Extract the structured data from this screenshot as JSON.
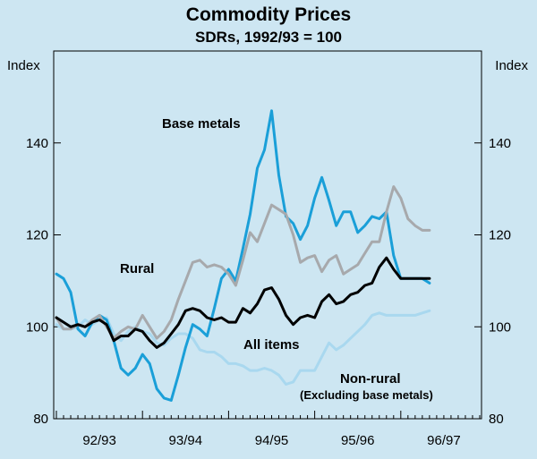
{
  "chart_data": {
    "type": "line",
    "title": "Commodity Prices",
    "subtitle": "SDRs, 1992/93 = 100",
    "ylabel_left": "Index",
    "ylabel_right": "Index",
    "ylim": [
      80,
      160
    ],
    "yticks": [
      80,
      100,
      120,
      140
    ],
    "x_unit": "months from July 1992",
    "xlim": [
      0,
      59
    ],
    "x_categories": [
      "92/93",
      "93/94",
      "94/95",
      "95/96",
      "96/97"
    ],
    "grid": false,
    "series": [
      {
        "name": "Base metals",
        "label": "Base metals",
        "color": "#1a9fd8",
        "width": 3,
        "x": [
          0,
          1,
          2,
          3,
          4,
          5,
          6,
          7,
          8,
          9,
          10,
          11,
          12,
          13,
          14,
          15,
          16,
          17,
          18,
          19,
          20,
          21,
          22,
          23,
          24,
          25,
          26,
          27,
          28,
          29,
          30,
          31,
          32,
          33,
          34,
          35,
          36,
          37,
          38,
          39,
          40,
          41,
          42,
          43,
          44,
          45,
          46,
          47,
          48,
          49,
          50,
          51,
          52
        ],
        "values": [
          111.5,
          110.5,
          107.5,
          99.5,
          98.0,
          101.0,
          102.5,
          101.5,
          97.0,
          91.0,
          89.5,
          91.0,
          94.0,
          92.0,
          86.5,
          84.5,
          84.0,
          89.5,
          95.5,
          100.5,
          99.5,
          98.0,
          104.0,
          110.5,
          112.5,
          110.0,
          117.0,
          124.5,
          134.5,
          138.5,
          147.0,
          133.0,
          124.0,
          122.5,
          119.0,
          122.0,
          128.0,
          132.5,
          127.5,
          122.0,
          125.0,
          125.0,
          120.5,
          122.0,
          124.0,
          123.5,
          125.0,
          115.5,
          110.5,
          110.5,
          110.5,
          110.5,
          109.5
        ]
      },
      {
        "name": "Rural",
        "label": "Rural",
        "color": "#a7a9ac",
        "width": 3,
        "x": [
          0,
          1,
          2,
          3,
          4,
          5,
          6,
          7,
          8,
          9,
          10,
          11,
          12,
          13,
          14,
          15,
          16,
          17,
          18,
          19,
          20,
          21,
          22,
          23,
          24,
          25,
          26,
          27,
          28,
          29,
          30,
          31,
          32,
          33,
          34,
          35,
          36,
          37,
          38,
          39,
          40,
          41,
          42,
          43,
          44,
          45,
          46,
          47,
          48,
          49,
          50,
          51,
          52
        ],
        "values": [
          102.0,
          99.5,
          99.5,
          100.5,
          100.0,
          101.5,
          102.5,
          100.0,
          97.5,
          99.0,
          100.0,
          99.5,
          102.5,
          100.0,
          97.5,
          99.0,
          101.5,
          106.0,
          110.0,
          114.0,
          114.5,
          113.0,
          113.5,
          113.0,
          111.5,
          109.0,
          114.5,
          120.5,
          118.5,
          122.5,
          126.5,
          125.5,
          124.5,
          120.0,
          114.0,
          115.0,
          115.5,
          112.0,
          114.5,
          115.5,
          111.5,
          112.5,
          113.5,
          116.0,
          118.5,
          118.5,
          125.0,
          130.5,
          128.0,
          123.5,
          122.0,
          121.0,
          121.0
        ]
      },
      {
        "name": "All items",
        "label": "All items",
        "color": "#000000",
        "width": 3,
        "x": [
          0,
          1,
          2,
          3,
          4,
          5,
          6,
          7,
          8,
          9,
          10,
          11,
          12,
          13,
          14,
          15,
          16,
          17,
          18,
          19,
          20,
          21,
          22,
          23,
          24,
          25,
          26,
          27,
          28,
          29,
          30,
          31,
          32,
          33,
          34,
          35,
          36,
          37,
          38,
          39,
          40,
          41,
          42,
          43,
          44,
          45,
          46,
          47,
          48,
          49,
          50,
          51,
          52
        ],
        "values": [
          102.0,
          101.0,
          100.0,
          100.5,
          100.0,
          101.0,
          101.5,
          100.5,
          97.0,
          98.0,
          98.0,
          99.5,
          99.0,
          97.0,
          95.5,
          96.5,
          98.5,
          100.5,
          103.5,
          104.0,
          103.5,
          102.0,
          101.5,
          102.0,
          101.0,
          101.0,
          104.0,
          103.0,
          105.0,
          108.0,
          108.5,
          106.0,
          102.5,
          100.5,
          102.0,
          102.5,
          102.0,
          105.5,
          107.0,
          105.0,
          105.5,
          107.0,
          107.5,
          109.0,
          109.5,
          113.0,
          115.0,
          112.5,
          110.5,
          110.5,
          110.5,
          110.5,
          110.5
        ]
      },
      {
        "name": "Non-rural (Excluding base metals)",
        "label": "Non-rural",
        "label2": "(Excluding base metals)",
        "color": "#a9d8ef",
        "width": 3,
        "x": [
          0,
          1,
          2,
          3,
          4,
          5,
          6,
          7,
          8,
          9,
          10,
          11,
          12,
          13,
          14,
          15,
          16,
          17,
          18,
          19,
          20,
          21,
          22,
          23,
          24,
          25,
          26,
          27,
          28,
          29,
          30,
          31,
          32,
          33,
          34,
          35,
          36,
          37,
          38,
          39,
          40,
          41,
          42,
          43,
          44,
          45,
          46,
          47,
          48,
          49,
          50,
          51,
          52
        ],
        "values": [
          100.5,
          99.5,
          99.5,
          100.0,
          101.5,
          100.5,
          101.5,
          102.0,
          98.5,
          97.0,
          99.0,
          100.0,
          99.0,
          98.5,
          96.5,
          96.0,
          97.5,
          98.5,
          98.5,
          97.5,
          95.0,
          94.5,
          94.5,
          93.5,
          92.0,
          92.0,
          91.5,
          90.5,
          90.5,
          91.0,
          90.5,
          89.5,
          87.5,
          88.0,
          90.5,
          90.5,
          90.5,
          93.5,
          96.5,
          95.0,
          96.0,
          97.5,
          99.0,
          100.5,
          102.5,
          103.0,
          102.5,
          102.5,
          102.5,
          102.5,
          102.5,
          103.0,
          103.5
        ]
      }
    ]
  }
}
